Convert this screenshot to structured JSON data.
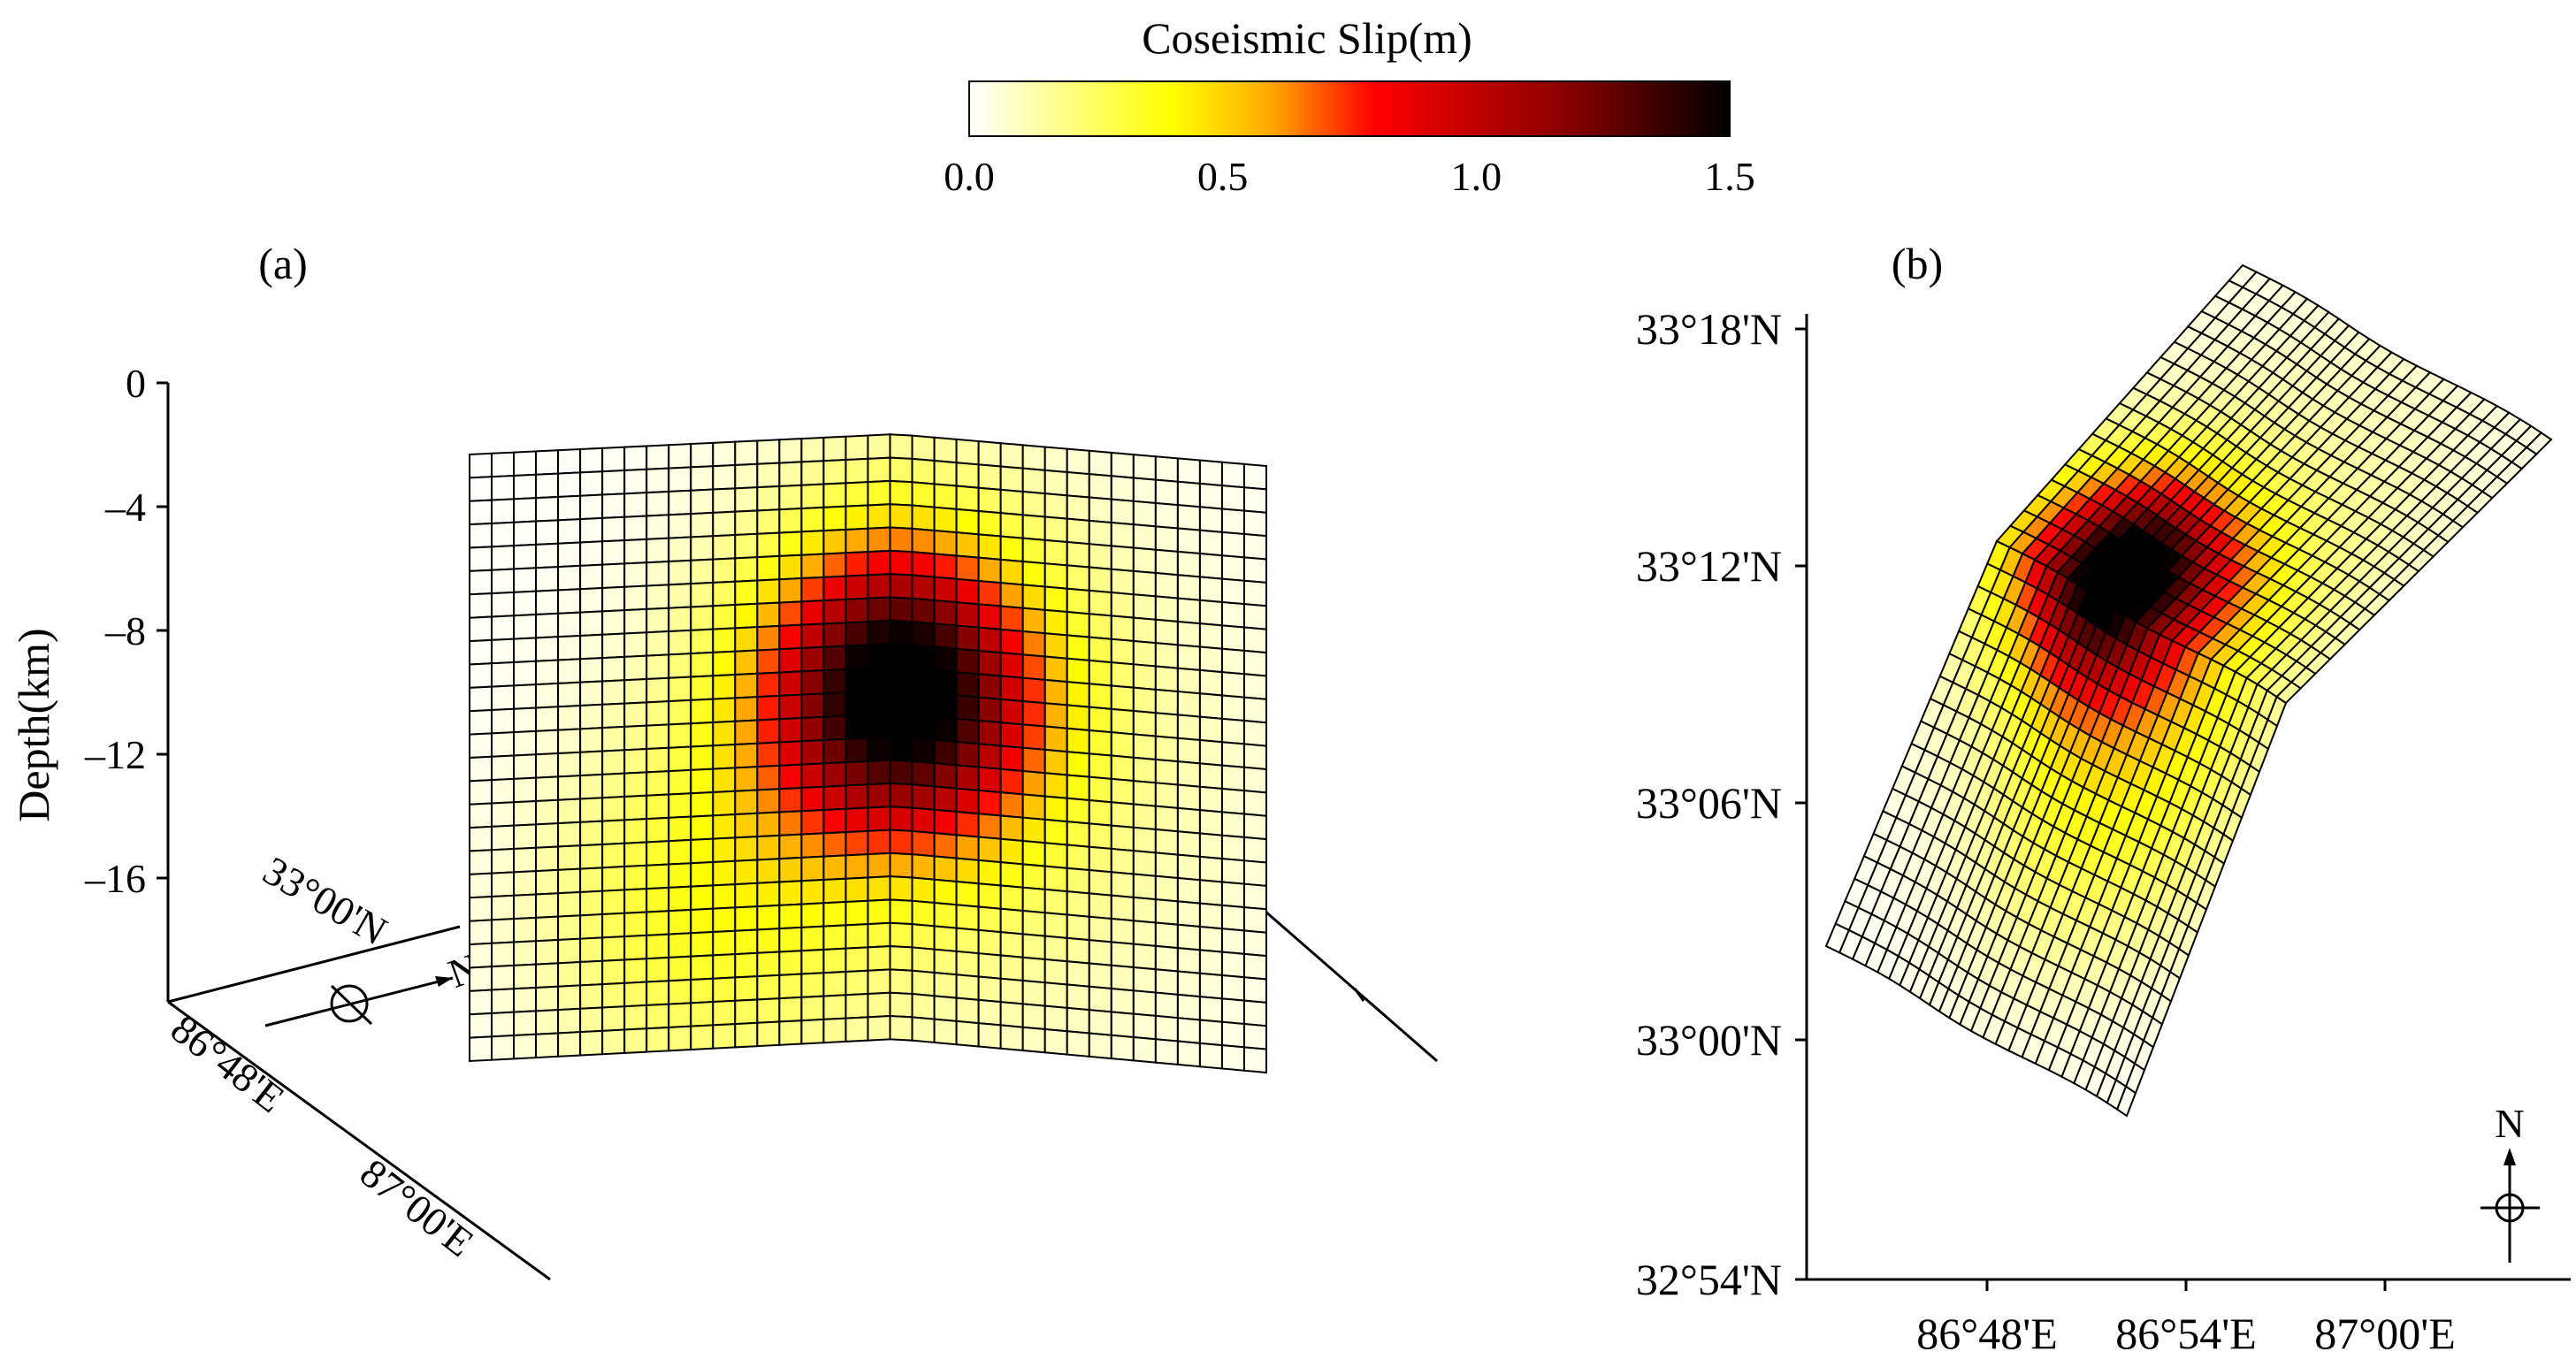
{
  "chart_data": [
    {
      "type": "heatmap",
      "panel_label": "(a)",
      "view": "3D oblique view of fault plane",
      "zlabel": "Depth(km)",
      "z_ticks": [
        "0",
        "–4",
        "–8",
        "–12",
        "–16"
      ],
      "z_tick_values": [
        0,
        -4,
        -8,
        -12,
        -16
      ],
      "zlim": [
        -20,
        0
      ],
      "base_axis_labels": [
        "33°00'N",
        "86°48'E",
        "87°00'E"
      ],
      "north_label": "N",
      "grid": {
        "rows": 26,
        "cols": 36
      },
      "slip_max_m": 1.5,
      "peak_slip_depth_km": -10
    },
    {
      "type": "heatmap",
      "panel_label": "(b)",
      "view": "map view of fault plane",
      "y_ticks": [
        "33°18'N",
        "33°12'N",
        "33°06'N",
        "33°00'N",
        "32°54'N"
      ],
      "x_ticks": [
        "86°48'E",
        "86°54'E",
        "87°00'E"
      ],
      "north_label": "N",
      "grid": {
        "rows": 26,
        "cols": 36
      },
      "slip_max_m": 1.5
    }
  ],
  "colorbar": {
    "title": "Coseismic Slip(m)",
    "tick_labels": [
      "0.0",
      "0.5",
      "1.0",
      "1.5"
    ],
    "tick_values": [
      0,
      0.5,
      1.0,
      1.5
    ],
    "range": [
      0,
      1.5
    ],
    "stops": [
      {
        "v": 0.0,
        "color": "#ffffff"
      },
      {
        "v": 0.4,
        "color": "#ffff00"
      },
      {
        "v": 0.6,
        "color": "#ffa500"
      },
      {
        "v": 0.8,
        "color": "#ff0000"
      },
      {
        "v": 1.2,
        "color": "#800000"
      },
      {
        "v": 1.5,
        "color": "#000000"
      }
    ]
  }
}
